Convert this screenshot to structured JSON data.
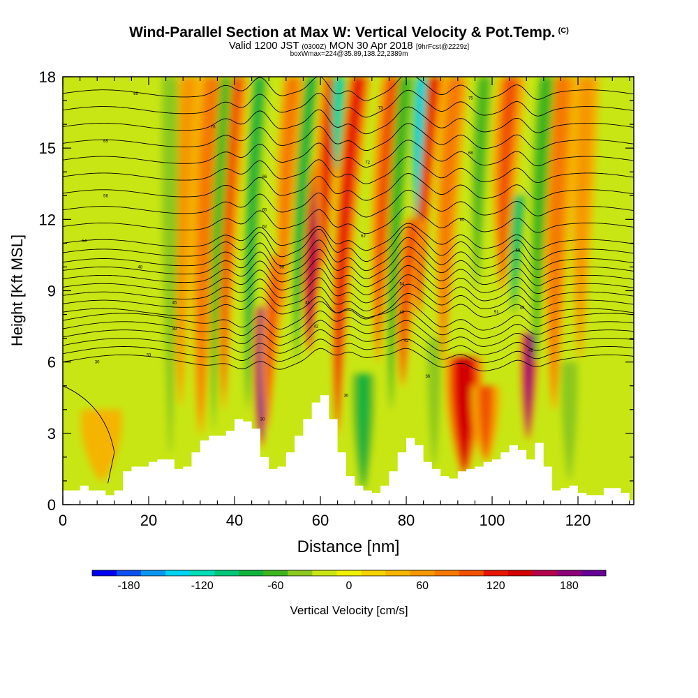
{
  "header": {
    "title": "Wind-Parallel Section at Max W: Vertical Velocity & Pot.Temp.",
    "title_tag": "(C)",
    "valid_prefix": "Valid 1200 JST",
    "valid_z": "(0300Z)",
    "valid_date": "MON 30 Apr 2018",
    "valid_fcst": "[9hrFcst@2229z]",
    "box_line": "boxWmax=224@35.89,138.22,2389m"
  },
  "chart_data": {
    "type": "heatmap",
    "xlabel": "Distance [nm]",
    "ylabel": "Height [Kft MSL]",
    "xlim": [
      0,
      133
    ],
    "ylim": [
      0,
      18
    ],
    "xticks": [
      0,
      20,
      40,
      60,
      80,
      100,
      120
    ],
    "yticks": [
      0,
      3,
      6,
      9,
      12,
      15,
      18
    ],
    "colorbar": {
      "label": "Vertical Velocity [cm/s]",
      "ticks": [
        -180,
        -120,
        -60,
        0,
        60,
        120,
        180
      ],
      "min": -210,
      "max": 210,
      "step": 20,
      "colors": [
        "#0000f0",
        "#0a50f0",
        "#0a96f0",
        "#00d2f0",
        "#00dcb4",
        "#00c878",
        "#10b43c",
        "#3cb41e",
        "#8cc81e",
        "#c8e614",
        "#f0f000",
        "#f5d200",
        "#f5b400",
        "#f59600",
        "#f57800",
        "#f05000",
        "#e61400",
        "#d20000",
        "#b4004b",
        "#8c0078",
        "#640096"
      ]
    },
    "terrain_profile": {
      "x": [
        0,
        2,
        4,
        6,
        8,
        10,
        12,
        14,
        16,
        18,
        20,
        22,
        24,
        26,
        28,
        30,
        32,
        34,
        36,
        38,
        40,
        42,
        44,
        46,
        48,
        50,
        52,
        54,
        56,
        58,
        60,
        62,
        64,
        66,
        68,
        70,
        72,
        74,
        76,
        78,
        80,
        82,
        84,
        86,
        88,
        90,
        92,
        94,
        96,
        98,
        100,
        102,
        104,
        106,
        108,
        110,
        112,
        114,
        116,
        118,
        120,
        122,
        124,
        126,
        128,
        130,
        132,
        133
      ],
      "y": [
        0.6,
        0.6,
        0.8,
        0.6,
        0.6,
        0.4,
        0.6,
        1.4,
        1.6,
        1.6,
        1.8,
        1.9,
        1.9,
        1.5,
        1.6,
        2.2,
        2.7,
        2.9,
        2.9,
        3.1,
        3.6,
        3.5,
        3.2,
        2.0,
        1.5,
        1.6,
        2.2,
        2.9,
        3.6,
        4.3,
        4.6,
        3.6,
        2.2,
        1.2,
        0.8,
        0.6,
        0.5,
        0.8,
        1.4,
        2.2,
        2.8,
        2.5,
        1.8,
        1.5,
        1.2,
        1.1,
        1.4,
        1.5,
        1.6,
        1.8,
        1.9,
        2.2,
        2.5,
        2.3,
        1.9,
        2.6,
        1.6,
        0.6,
        0.7,
        0.8,
        0.5,
        0.4,
        0.4,
        0.7,
        0.7,
        0.5,
        0.2,
        0.2
      ]
    },
    "velocity_features": [
      {
        "x": 46.5,
        "ytop": 8.3,
        "ybot": 2.5,
        "w": 1.8,
        "tilt": 0.35,
        "value": 200
      },
      {
        "x": 48.5,
        "ytop": 10.5,
        "ybot": 3.2,
        "w": 2.0,
        "tilt": 0.8,
        "value": 90
      },
      {
        "x": 58.5,
        "ytop": 14.5,
        "ybot": 6.5,
        "w": 2.2,
        "tilt": 0.9,
        "value": 160
      },
      {
        "x": 61.5,
        "ytop": 18.0,
        "ybot": 10.0,
        "w": 2.4,
        "tilt": 0.6,
        "value": 110
      },
      {
        "x": 65.5,
        "ytop": 18.0,
        "ybot": 3.0,
        "w": 2.2,
        "tilt": 0.7,
        "value": 120
      },
      {
        "x": 84.0,
        "ytop": 18.0,
        "ybot": 8.0,
        "w": 2.2,
        "tilt": 0.7,
        "value": 120
      },
      {
        "x": 80.0,
        "ytop": 12.0,
        "ybot": 5.0,
        "w": 2.0,
        "tilt": 0.8,
        "value": 95
      },
      {
        "x": 93.5,
        "ytop": 6.2,
        "ybot": 1.3,
        "w": 3.6,
        "tilt": 0.0,
        "value": 140
      },
      {
        "x": 98.5,
        "ytop": 5.0,
        "ybot": 1.8,
        "w": 3.0,
        "tilt": 0.0,
        "value": 90
      },
      {
        "x": 108.5,
        "ytop": 7.2,
        "ybot": 2.8,
        "w": 1.6,
        "tilt": 0.2,
        "value": 180
      },
      {
        "x": 103.0,
        "ytop": 18.0,
        "ybot": 9.0,
        "w": 3.0,
        "tilt": 0.5,
        "value": 90
      },
      {
        "x": 115.0,
        "ytop": 18.0,
        "ybot": 4.0,
        "w": 3.0,
        "tilt": 0.3,
        "value": 70
      },
      {
        "x": 33.0,
        "ytop": 18.0,
        "ybot": 3.0,
        "w": 3.0,
        "tilt": 0.4,
        "value": 70
      },
      {
        "x": 38.5,
        "ytop": 18.0,
        "ybot": 4.0,
        "w": 2.2,
        "tilt": 0.5,
        "value": 90
      },
      {
        "x": 52.0,
        "ytop": 18.0,
        "ybot": 8.0,
        "w": 2.2,
        "tilt": 0.5,
        "value": 80
      },
      {
        "x": 74.5,
        "ytop": 18.0,
        "ybot": 6.0,
        "w": 2.6,
        "tilt": 0.6,
        "value": 90
      },
      {
        "x": 89.5,
        "ytop": 18.0,
        "ybot": 6.0,
        "w": 2.6,
        "tilt": 0.5,
        "value": 80
      },
      {
        "x": 121.0,
        "ytop": 18.0,
        "ybot": 6.0,
        "w": 3.0,
        "tilt": 0.3,
        "value": 60
      },
      {
        "x": 28.0,
        "ytop": 18.0,
        "ybot": 4.0,
        "w": 2.8,
        "tilt": 0.3,
        "value": 55
      },
      {
        "x": 9.0,
        "ytop": 4.0,
        "ybot": 1.0,
        "w": 5.0,
        "tilt": 0.0,
        "value": 45
      },
      {
        "x": 44.0,
        "ytop": 18.0,
        "ybot": 4.0,
        "w": 1.6,
        "tilt": 0.4,
        "value": -75
      },
      {
        "x": 36.0,
        "ytop": 18.0,
        "ybot": 3.0,
        "w": 1.6,
        "tilt": 0.4,
        "value": -60
      },
      {
        "x": 55.5,
        "ytop": 18.0,
        "ybot": 6.0,
        "w": 1.6,
        "tilt": 0.6,
        "value": -75
      },
      {
        "x": 64.0,
        "ytop": 18.0,
        "ybot": 14.0,
        "w": 1.4,
        "tilt": 0.3,
        "value": -125
      },
      {
        "x": 70.0,
        "ytop": 5.5,
        "ybot": 0.6,
        "w": 2.4,
        "tilt": 0.0,
        "value": -85
      },
      {
        "x": 82.8,
        "ytop": 18.0,
        "ybot": 12.0,
        "w": 1.3,
        "tilt": 0.4,
        "value": -150
      },
      {
        "x": 105.5,
        "ytop": 13.0,
        "ybot": 8.0,
        "w": 1.3,
        "tilt": 0.5,
        "value": -110
      },
      {
        "x": 77.5,
        "ytop": 18.0,
        "ybot": 4.0,
        "w": 1.6,
        "tilt": 0.5,
        "value": -70
      },
      {
        "x": 111.0,
        "ytop": 18.0,
        "ybot": 6.0,
        "w": 1.8,
        "tilt": 0.4,
        "value": -65
      },
      {
        "x": 97.0,
        "ytop": 18.0,
        "ybot": 9.0,
        "w": 2.0,
        "tilt": 0.4,
        "value": -55
      },
      {
        "x": 118.0,
        "ytop": 6.0,
        "ybot": 1.0,
        "w": 2.0,
        "tilt": 0.0,
        "value": -50
      },
      {
        "x": 86.5,
        "ytop": 7.0,
        "ybot": 1.5,
        "w": 1.6,
        "tilt": 0.0,
        "value": -50
      },
      {
        "x": 25.0,
        "ytop": 18.0,
        "ybot": 2.0,
        "w": 2.0,
        "tilt": 0.0,
        "value": -40
      }
    ],
    "theta_contours": {
      "levels": [
        11.0,
        11.7,
        12.4,
        13.1,
        13.8,
        14.5,
        15.2,
        15.9,
        16.6,
        17.3,
        6.0,
        6.35,
        6.7,
        7.05,
        7.4,
        7.75,
        8.1,
        8.45,
        8.8,
        9.15,
        9.5,
        9.85,
        10.2,
        10.6
      ],
      "labels": [
        {
          "x": 35,
          "y": 15.9,
          "text": "76"
        },
        {
          "x": 17,
          "y": 17.3,
          "text": "69"
        },
        {
          "x": 10,
          "y": 15.3,
          "text": "65"
        },
        {
          "x": 10,
          "y": 13.0,
          "text": "56"
        },
        {
          "x": 5,
          "y": 11.1,
          "text": "54"
        },
        {
          "x": 18,
          "y": 10.0,
          "text": "48"
        },
        {
          "x": 26,
          "y": 8.5,
          "text": "45"
        },
        {
          "x": 26,
          "y": 7.4,
          "text": "39"
        },
        {
          "x": 20,
          "y": 6.3,
          "text": "33"
        },
        {
          "x": 8,
          "y": 6.0,
          "text": "30"
        },
        {
          "x": 47,
          "y": 12.4,
          "text": "65"
        },
        {
          "x": 47,
          "y": 13.8,
          "text": "66"
        },
        {
          "x": 47,
          "y": 11.7,
          "text": "62"
        },
        {
          "x": 51,
          "y": 10.0,
          "text": "59"
        },
        {
          "x": 57,
          "y": 8.5,
          "text": "48"
        },
        {
          "x": 59,
          "y": 7.5,
          "text": "42"
        },
        {
          "x": 46.5,
          "y": 3.6,
          "text": "30"
        },
        {
          "x": 66,
          "y": 4.6,
          "text": "30"
        },
        {
          "x": 71,
          "y": 14.4,
          "text": "72"
        },
        {
          "x": 70,
          "y": 11.3,
          "text": "62"
        },
        {
          "x": 74,
          "y": 16.7,
          "text": "73"
        },
        {
          "x": 79,
          "y": 9.3,
          "text": "54"
        },
        {
          "x": 79,
          "y": 8.1,
          "text": "48"
        },
        {
          "x": 80,
          "y": 6.9,
          "text": "42"
        },
        {
          "x": 85,
          "y": 5.4,
          "text": "36"
        },
        {
          "x": 95,
          "y": 17.1,
          "text": "75"
        },
        {
          "x": 95,
          "y": 14.8,
          "text": "68"
        },
        {
          "x": 93,
          "y": 12.0,
          "text": "60"
        },
        {
          "x": 106,
          "y": 10.7,
          "text": "59"
        },
        {
          "x": 101,
          "y": 8.1,
          "text": "51"
        },
        {
          "x": 107,
          "y": 8.3,
          "text": "48"
        },
        {
          "x": 109,
          "y": 6.5,
          "text": "42"
        }
      ]
    }
  }
}
